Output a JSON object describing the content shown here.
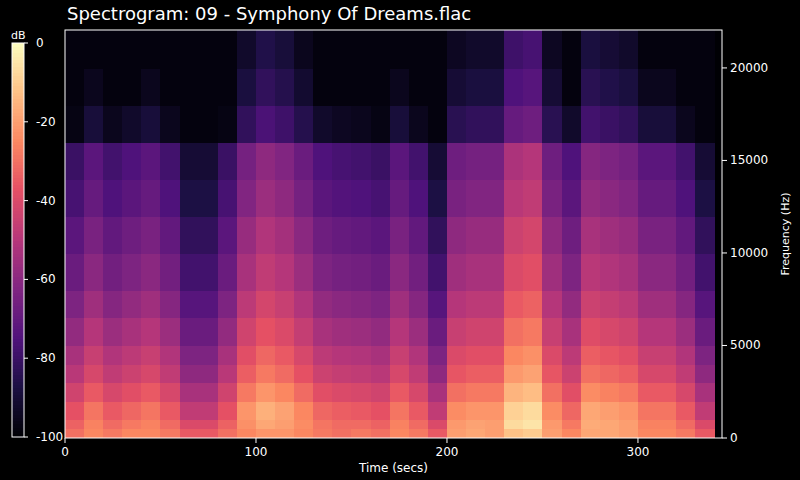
{
  "chart_data": {
    "type": "heatmap",
    "title": "Spectrogram: 09 - Symphony Of Dreams.flac",
    "x_label": "Time (secs)",
    "y_label": "Frequency (Hz)",
    "xlim": [
      0,
      344
    ],
    "ylim": [
      0,
      22050
    ],
    "xticks": [
      0,
      100,
      200,
      300
    ],
    "yticks": [
      0,
      5000,
      10000,
      15000,
      20000
    ],
    "x_edges": [
      0,
      10,
      20,
      30,
      40,
      50,
      60,
      70,
      80,
      90,
      100,
      110,
      120,
      130,
      140,
      150,
      160,
      170,
      180,
      190,
      200,
      210,
      220,
      230,
      240,
      250,
      260,
      270,
      280,
      290,
      300,
      310,
      320,
      330,
      340
    ],
    "y_edges": [
      0,
      500,
      1000,
      2000,
      3000,
      4000,
      5000,
      6500,
      8000,
      10000,
      12000,
      14000,
      16000,
      18000,
      20000,
      22050
    ],
    "cells": [
      [
        -30,
        -25,
        -28,
        -25,
        -25,
        -28,
        -35,
        -35,
        -30,
        -25,
        -22,
        -22,
        -25,
        -28,
        -30,
        -28,
        -30,
        -25,
        -28,
        -35,
        -20,
        -18,
        -20,
        -12,
        -10,
        -20,
        -25,
        -18,
        -18,
        -20,
        -25,
        -25,
        -28,
        -35
      ],
      [
        -33,
        -26,
        -31,
        -28,
        -26,
        -31,
        -40,
        -40,
        -33,
        -23,
        -18,
        -20,
        -24,
        -29,
        -31,
        -31,
        -33,
        -26,
        -31,
        -40,
        -21,
        -19,
        -20,
        -7,
        -5,
        -21,
        -28,
        -17,
        -18,
        -20,
        -26,
        -26,
        -31,
        -40
      ],
      [
        -37,
        -29,
        -35,
        -32,
        -29,
        -35,
        -47,
        -47,
        -37,
        -22,
        -16,
        -19,
        -25,
        -32,
        -34,
        -35,
        -37,
        -29,
        -35,
        -47,
        -24,
        -22,
        -22,
        -9,
        -7,
        -24,
        -32,
        -18,
        -20,
        -22,
        -29,
        -29,
        -35,
        -47
      ],
      [
        -43,
        -35,
        -41,
        -38,
        -35,
        -41,
        -53,
        -53,
        -43,
        -28,
        -22,
        -25,
        -31,
        -38,
        -40,
        -41,
        -43,
        -35,
        -41,
        -53,
        -30,
        -28,
        -28,
        -15,
        -13,
        -30,
        -38,
        -24,
        -26,
        -28,
        -35,
        -35,
        -41,
        -53
      ],
      [
        -49,
        -41,
        -47,
        -44,
        -41,
        -47,
        -59,
        -59,
        -49,
        -34,
        -28,
        -31,
        -37,
        -44,
        -46,
        -47,
        -49,
        -41,
        -47,
        -59,
        -36,
        -34,
        -34,
        -21,
        -19,
        -36,
        -44,
        -30,
        -32,
        -34,
        -41,
        -41,
        -47,
        -59
      ],
      [
        -53,
        -45,
        -51,
        -48,
        -45,
        -51,
        -63,
        -63,
        -53,
        -38,
        -32,
        -35,
        -41,
        -48,
        -50,
        -51,
        -53,
        -45,
        -51,
        -63,
        -40,
        -38,
        -38,
        -25,
        -23,
        -40,
        -48,
        -34,
        -36,
        -38,
        -45,
        -45,
        -51,
        -63
      ],
      [
        -58,
        -50,
        -56,
        -53,
        -50,
        -56,
        -68,
        -68,
        -58,
        -43,
        -37,
        -40,
        -46,
        -53,
        -55,
        -56,
        -58,
        -50,
        -56,
        -68,
        -45,
        -43,
        -43,
        -30,
        -28,
        -45,
        -53,
        -39,
        -41,
        -43,
        -50,
        -50,
        -56,
        -68
      ],
      [
        -63,
        -55,
        -61,
        -58,
        -55,
        -61,
        -73,
        -73,
        -63,
        -48,
        -42,
        -45,
        -51,
        -58,
        -60,
        -61,
        -63,
        -55,
        -61,
        -73,
        -50,
        -48,
        -48,
        -35,
        -33,
        -50,
        -58,
        -44,
        -46,
        -48,
        -55,
        -55,
        -61,
        -73
      ],
      [
        -68,
        -60,
        -66,
        -63,
        -60,
        -66,
        -78,
        -78,
        -68,
        -53,
        -47,
        -50,
        -56,
        -63,
        -65,
        -66,
        -68,
        -60,
        -66,
        -78,
        -55,
        -53,
        -53,
        -40,
        -38,
        -55,
        -63,
        -49,
        -51,
        -53,
        -60,
        -60,
        -66,
        -78
      ],
      [
        -72,
        -64,
        -70,
        -67,
        -64,
        -70,
        -82,
        -82,
        -72,
        -57,
        -51,
        -54,
        -60,
        -67,
        -69,
        -70,
        -72,
        -64,
        -70,
        -82,
        -59,
        -57,
        -57,
        -44,
        -42,
        -59,
        -67,
        -53,
        -55,
        -57,
        -64,
        -64,
        -70,
        -82
      ],
      [
        -77,
        -69,
        -75,
        -72,
        -69,
        -75,
        -87,
        -87,
        -77,
        -62,
        -56,
        -59,
        -65,
        -72,
        -74,
        -75,
        -77,
        -69,
        -75,
        -87,
        -64,
        -62,
        -62,
        -49,
        -47,
        -64,
        -72,
        -58,
        -60,
        -62,
        -69,
        -69,
        -75,
        -87
      ],
      [
        -80,
        -72,
        -78,
        -75,
        -72,
        -78,
        -90,
        -90,
        -80,
        -65,
        -59,
        -62,
        -68,
        -75,
        -77,
        -78,
        -80,
        -72,
        -78,
        -90,
        -67,
        -65,
        -65,
        -52,
        -50,
        -67,
        -75,
        -61,
        -63,
        -65,
        -72,
        -72,
        -78,
        -90
      ],
      [
        -97,
        -89,
        -95,
        -92,
        -89,
        -95,
        -98,
        -98,
        -97,
        -82,
        -76,
        -79,
        -85,
        -92,
        -94,
        -95,
        -97,
        -89,
        -95,
        -98,
        -84,
        -82,
        -82,
        -69,
        -67,
        -84,
        -92,
        -78,
        -80,
        -82,
        -89,
        -89,
        -95,
        -98
      ],
      [
        -98,
        -95,
        -98,
        -98,
        -95,
        -98,
        -98,
        -98,
        -98,
        -88,
        -82,
        -85,
        -91,
        -98,
        -98,
        -98,
        -98,
        -95,
        -98,
        -98,
        -90,
        -88,
        -88,
        -75,
        -73,
        -90,
        -98,
        -84,
        -86,
        -88,
        -95,
        -95,
        -98,
        -98
      ],
      [
        -98,
        -98,
        -98,
        -98,
        -98,
        -98,
        -98,
        -98,
        -98,
        -92,
        -86,
        -89,
        -95,
        -98,
        -98,
        -98,
        -98,
        -98,
        -98,
        -98,
        -94,
        -92,
        -92,
        -79,
        -77,
        -94,
        -98,
        -88,
        -90,
        -92,
        -98,
        -98,
        -98,
        -98
      ]
    ],
    "colorbar": {
      "label": "dB",
      "range": [
        -100,
        0
      ],
      "ticks": [
        0,
        -20,
        -40,
        -60,
        -80,
        -100
      ]
    }
  }
}
